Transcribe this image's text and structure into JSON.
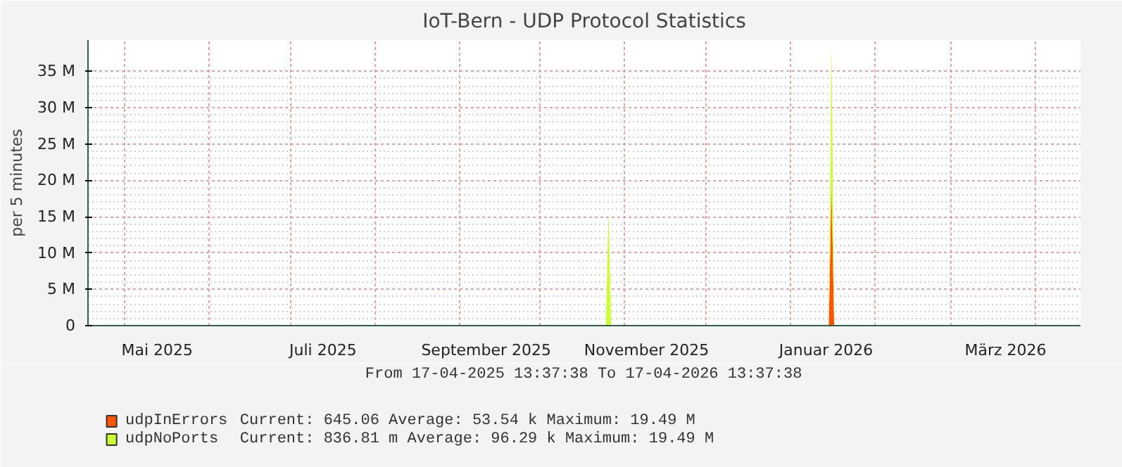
{
  "chart_data": {
    "type": "area",
    "title": "IoT-Bern - UDP Protocol Statistics",
    "ylabel": "per 5 minutes",
    "stacked": true,
    "x": [
      "2025-04-17T13:37",
      "2025-10-25",
      "2025-10-26",
      "2025-10-27",
      "2026-01-15",
      "2026-01-16",
      "2026-01-17",
      "2026-04-17T13:37"
    ],
    "series": [
      {
        "name": "udpInErrors",
        "color": "#ff5500",
        "values": [
          0,
          0,
          0,
          0,
          0,
          19.49,
          0,
          0
        ]
      },
      {
        "name": "udpNoPorts",
        "color": "#ccff33",
        "values": [
          0,
          0,
          15.6,
          0,
          0,
          19.49,
          0,
          0
        ]
      }
    ],
    "xlim": [
      "2025-04-17T13:37",
      "2026-04-17T13:37"
    ],
    "ylim": [
      0,
      39.3
    ],
    "xticks": [
      {
        "value": "2025-05-01",
        "label": null
      },
      {
        "value": "2025-05-13",
        "label": "Mai 2025"
      },
      {
        "value": "2025-06-01",
        "label": null
      },
      {
        "value": "2025-07-01",
        "label": null
      },
      {
        "value": "2025-07-13",
        "label": "Juli 2025"
      },
      {
        "value": "2025-08-01",
        "label": null
      },
      {
        "value": "2025-09-01",
        "label": null
      },
      {
        "value": "2025-09-11",
        "label": "September 2025"
      },
      {
        "value": "2025-10-01",
        "label": null
      },
      {
        "value": "2025-11-01",
        "label": null
      },
      {
        "value": "2025-11-09",
        "label": "November 2025"
      },
      {
        "value": "2025-12-01",
        "label": null
      },
      {
        "value": "2026-01-01",
        "label": null
      },
      {
        "value": "2026-01-14",
        "label": "Januar 2026"
      },
      {
        "value": "2026-02-01",
        "label": null
      },
      {
        "value": "2026-03-01",
        "label": null
      },
      {
        "value": "2026-03-21",
        "label": "März 2026"
      },
      {
        "value": "2026-04-01",
        "label": null
      }
    ],
    "yticks": [
      0,
      {
        "value": 5,
        "label": "5 M"
      },
      {
        "value": 10,
        "label": "10 M"
      },
      {
        "value": 15,
        "label": "15 M"
      },
      {
        "value": 20,
        "label": "20 M"
      },
      {
        "value": 25,
        "label": "25 M"
      },
      {
        "value": 30,
        "label": "30 M"
      },
      {
        "value": 35,
        "label": "35 M"
      }
    ],
    "grid": true,
    "legend": "bottom left",
    "annotations": [
      "From 17-04-2025 13:37:38 To 17-04-2026 13:37:38",
      "Current:  645.06    Average:   53.54 k  Maximum:   19.49 M",
      "Current:  836.81 m  Average:   96.29 k  Maximum:   19.49 M"
    ]
  }
}
